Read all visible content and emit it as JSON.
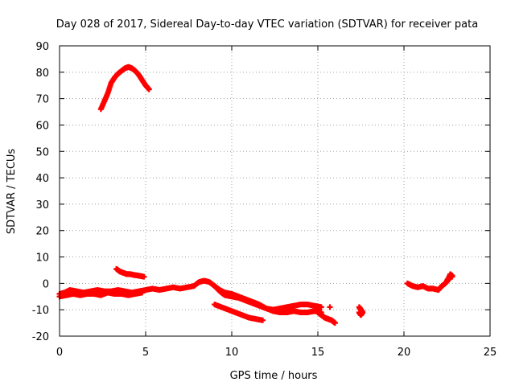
{
  "chart_data": {
    "type": "scatter",
    "title": "Day 028 of 2017, Sidereal Day-to-day VTEC variation (SDTVAR) for receiver pata",
    "xlabel": "GPS time / hours",
    "ylabel": "SDTVAR / TECUs",
    "xlim": [
      0,
      25
    ],
    "ylim": [
      -20,
      90
    ],
    "xticks": [
      0,
      5,
      10,
      15,
      20,
      25
    ],
    "yticks": [
      -20,
      -10,
      0,
      10,
      20,
      30,
      40,
      50,
      60,
      70,
      80,
      90
    ],
    "grid": true,
    "marker": "+",
    "series": [
      {
        "name": "SDTVAR",
        "color": "#ff0000",
        "segments": [
          {
            "x": [
              2.4,
              2.6,
              2.8,
              3.0,
              3.2,
              3.4,
              3.6,
              3.8,
              4.0,
              4.2,
              4.4,
              4.6,
              4.8,
              5.0,
              5.2
            ],
            "y": [
              66,
              69,
              72,
              76,
              78,
              79.5,
              80.5,
              81.5,
              82,
              81.5,
              80.5,
              79,
              77,
              75,
              73.5
            ]
          },
          {
            "x": [
              3.3,
              3.5,
              3.7,
              3.9,
              4.1,
              4.3,
              4.5,
              4.7,
              4.9
            ],
            "y": [
              5.5,
              4.5,
              4,
              3.5,
              3.5,
              3.2,
              3,
              2.8,
              2.5
            ]
          },
          {
            "x": [
              0.0,
              0.3,
              0.6,
              1.0,
              1.4,
              1.8,
              2.2,
              2.6,
              3.0,
              3.4,
              3.8,
              4.2,
              4.6,
              5.0,
              5.4,
              5.8,
              6.2,
              6.6,
              7.0,
              7.4,
              7.8,
              8.1,
              8.4,
              8.7,
              9.0,
              9.3,
              9.6,
              10.0,
              10.4,
              10.8,
              11.2,
              11.6,
              12.0,
              12.4,
              12.8,
              13.2,
              13.6,
              14.0,
              14.4,
              14.8,
              15.2
            ],
            "y": [
              -4,
              -3.5,
              -2.5,
              -3,
              -3.5,
              -3,
              -2.5,
              -3,
              -3,
              -2.5,
              -3,
              -3.5,
              -3,
              -2.5,
              -2,
              -2.5,
              -2,
              -1.5,
              -2,
              -1.5,
              -1,
              0.5,
              1,
              0.5,
              -1,
              -3,
              -4.5,
              -5,
              -5.5,
              -6.5,
              -7.5,
              -8.5,
              -9.5,
              -10,
              -9.5,
              -9,
              -8.5,
              -8,
              -8,
              -8.5,
              -9
            ]
          },
          {
            "x": [
              0.0,
              0.4,
              0.8,
              1.2,
              1.6,
              2.0,
              2.4,
              2.8,
              3.2,
              3.6,
              4.0,
              4.4,
              4.8
            ],
            "y": [
              -5,
              -4.5,
              -4,
              -4.5,
              -4,
              -4,
              -4.5,
              -3.5,
              -4,
              -4,
              -4.5,
              -4,
              -3.5
            ]
          },
          {
            "x": [
              9.0,
              9.3,
              9.6,
              10.0,
              10.4,
              10.8,
              11.2,
              11.6,
              12.0,
              12.4,
              12.8,
              13.2,
              13.6,
              14.0,
              14.4,
              14.8,
              15.2
            ],
            "y": [
              -1,
              -2.5,
              -3.5,
              -4,
              -5,
              -6,
              -7,
              -8,
              -9.5,
              -10.5,
              -11,
              -11,
              -10.5,
              -11,
              -11,
              -10.5,
              -11
            ]
          },
          {
            "x": [
              9.0,
              9.4,
              9.8,
              10.2,
              10.6,
              11.0,
              11.4,
              11.8
            ],
            "y": [
              -8,
              -9,
              -10,
              -11,
              -12,
              -13,
              -13.5,
              -14
            ]
          },
          {
            "x": [
              15.0,
              15.2,
              15.4,
              15.6,
              15.8,
              16.0
            ],
            "y": [
              -11,
              -12,
              -13,
              -13.5,
              -14,
              -15
            ]
          },
          {
            "x": [
              15.7
            ],
            "y": [
              -9
            ]
          },
          {
            "x": [
              17.4,
              17.5,
              17.6,
              17.5,
              17.4
            ],
            "y": [
              -9,
              -10,
              -11,
              -12,
              -11
            ]
          },
          {
            "x": [
              20.2,
              20.5,
              20.8,
              21.1,
              21.4,
              21.7,
              22.0,
              22.2,
              22.4,
              22.6,
              22.8
            ],
            "y": [
              0,
              -1,
              -1.5,
              -1,
              -2,
              -2,
              -2.5,
              -1,
              0,
              1.5,
              3
            ]
          },
          {
            "x": [
              22.5,
              22.6,
              22.7,
              22.8
            ],
            "y": [
              1,
              2,
              3.5,
              2.5
            ]
          }
        ]
      }
    ]
  }
}
